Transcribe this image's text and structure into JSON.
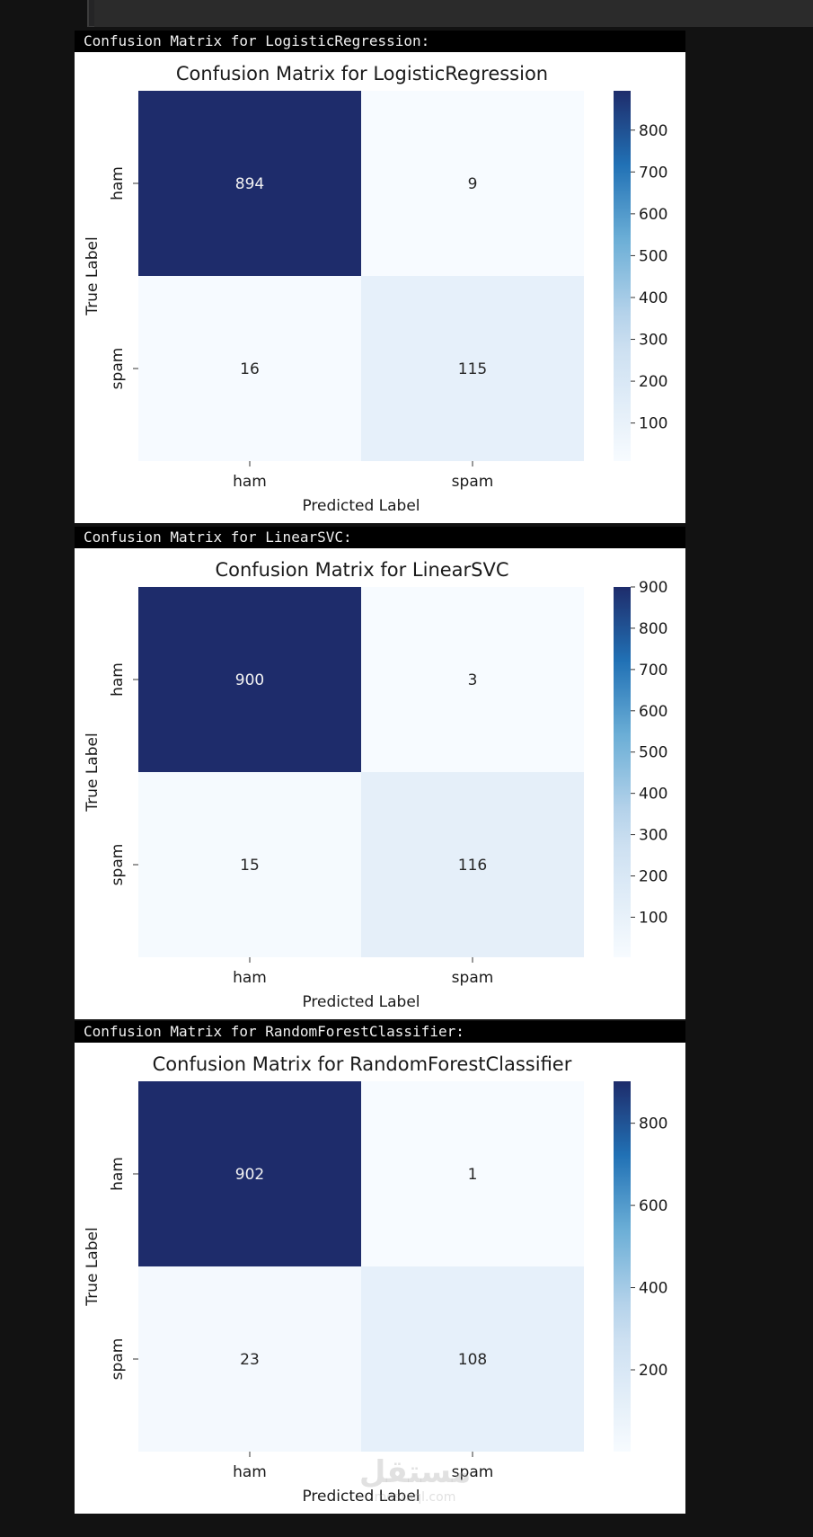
{
  "chart_data": [
    {
      "type": "heatmap",
      "output_label": "Confusion Matrix for LogisticRegression:",
      "title": "Confusion Matrix for LogisticRegression",
      "xlabel": "Predicted Label",
      "ylabel": "True Label",
      "x_categories": [
        "ham",
        "spam"
      ],
      "y_categories": [
        "ham",
        "spam"
      ],
      "values": [
        [
          894,
          9
        ],
        [
          16,
          115
        ]
      ],
      "colormap": "Blues",
      "color_range": [
        9,
        894
      ],
      "colorbar_ticks": [
        100,
        200,
        300,
        400,
        500,
        600,
        700,
        800
      ]
    },
    {
      "type": "heatmap",
      "output_label": "Confusion Matrix for LinearSVC:",
      "title": "Confusion Matrix for LinearSVC",
      "xlabel": "Predicted Label",
      "ylabel": "True Label",
      "x_categories": [
        "ham",
        "spam"
      ],
      "y_categories": [
        "ham",
        "spam"
      ],
      "values": [
        [
          900,
          3
        ],
        [
          15,
          116
        ]
      ],
      "colormap": "Blues",
      "color_range": [
        3,
        900
      ],
      "colorbar_ticks": [
        100,
        200,
        300,
        400,
        500,
        600,
        700,
        800,
        900
      ]
    },
    {
      "type": "heatmap",
      "output_label": "Confusion Matrix for RandomForestClassifier:",
      "title": "Confusion Matrix for RandomForestClassifier",
      "xlabel": "Predicted Label",
      "ylabel": "True Label",
      "x_categories": [
        "ham",
        "spam"
      ],
      "y_categories": [
        "ham",
        "spam"
      ],
      "values": [
        [
          902,
          1
        ],
        [
          23,
          108
        ]
      ],
      "colormap": "Blues",
      "color_range": [
        1,
        902
      ],
      "colorbar_ticks": [
        200,
        400,
        600,
        800
      ]
    }
  ],
  "colors": {
    "page_background": "#121212",
    "heat_low": "#f7fbff",
    "heat_mid": "#c6dbef",
    "heat_high": "#1e2c6b"
  },
  "watermark": {
    "logo": "مستقل",
    "domain": "mostaql.com"
  }
}
